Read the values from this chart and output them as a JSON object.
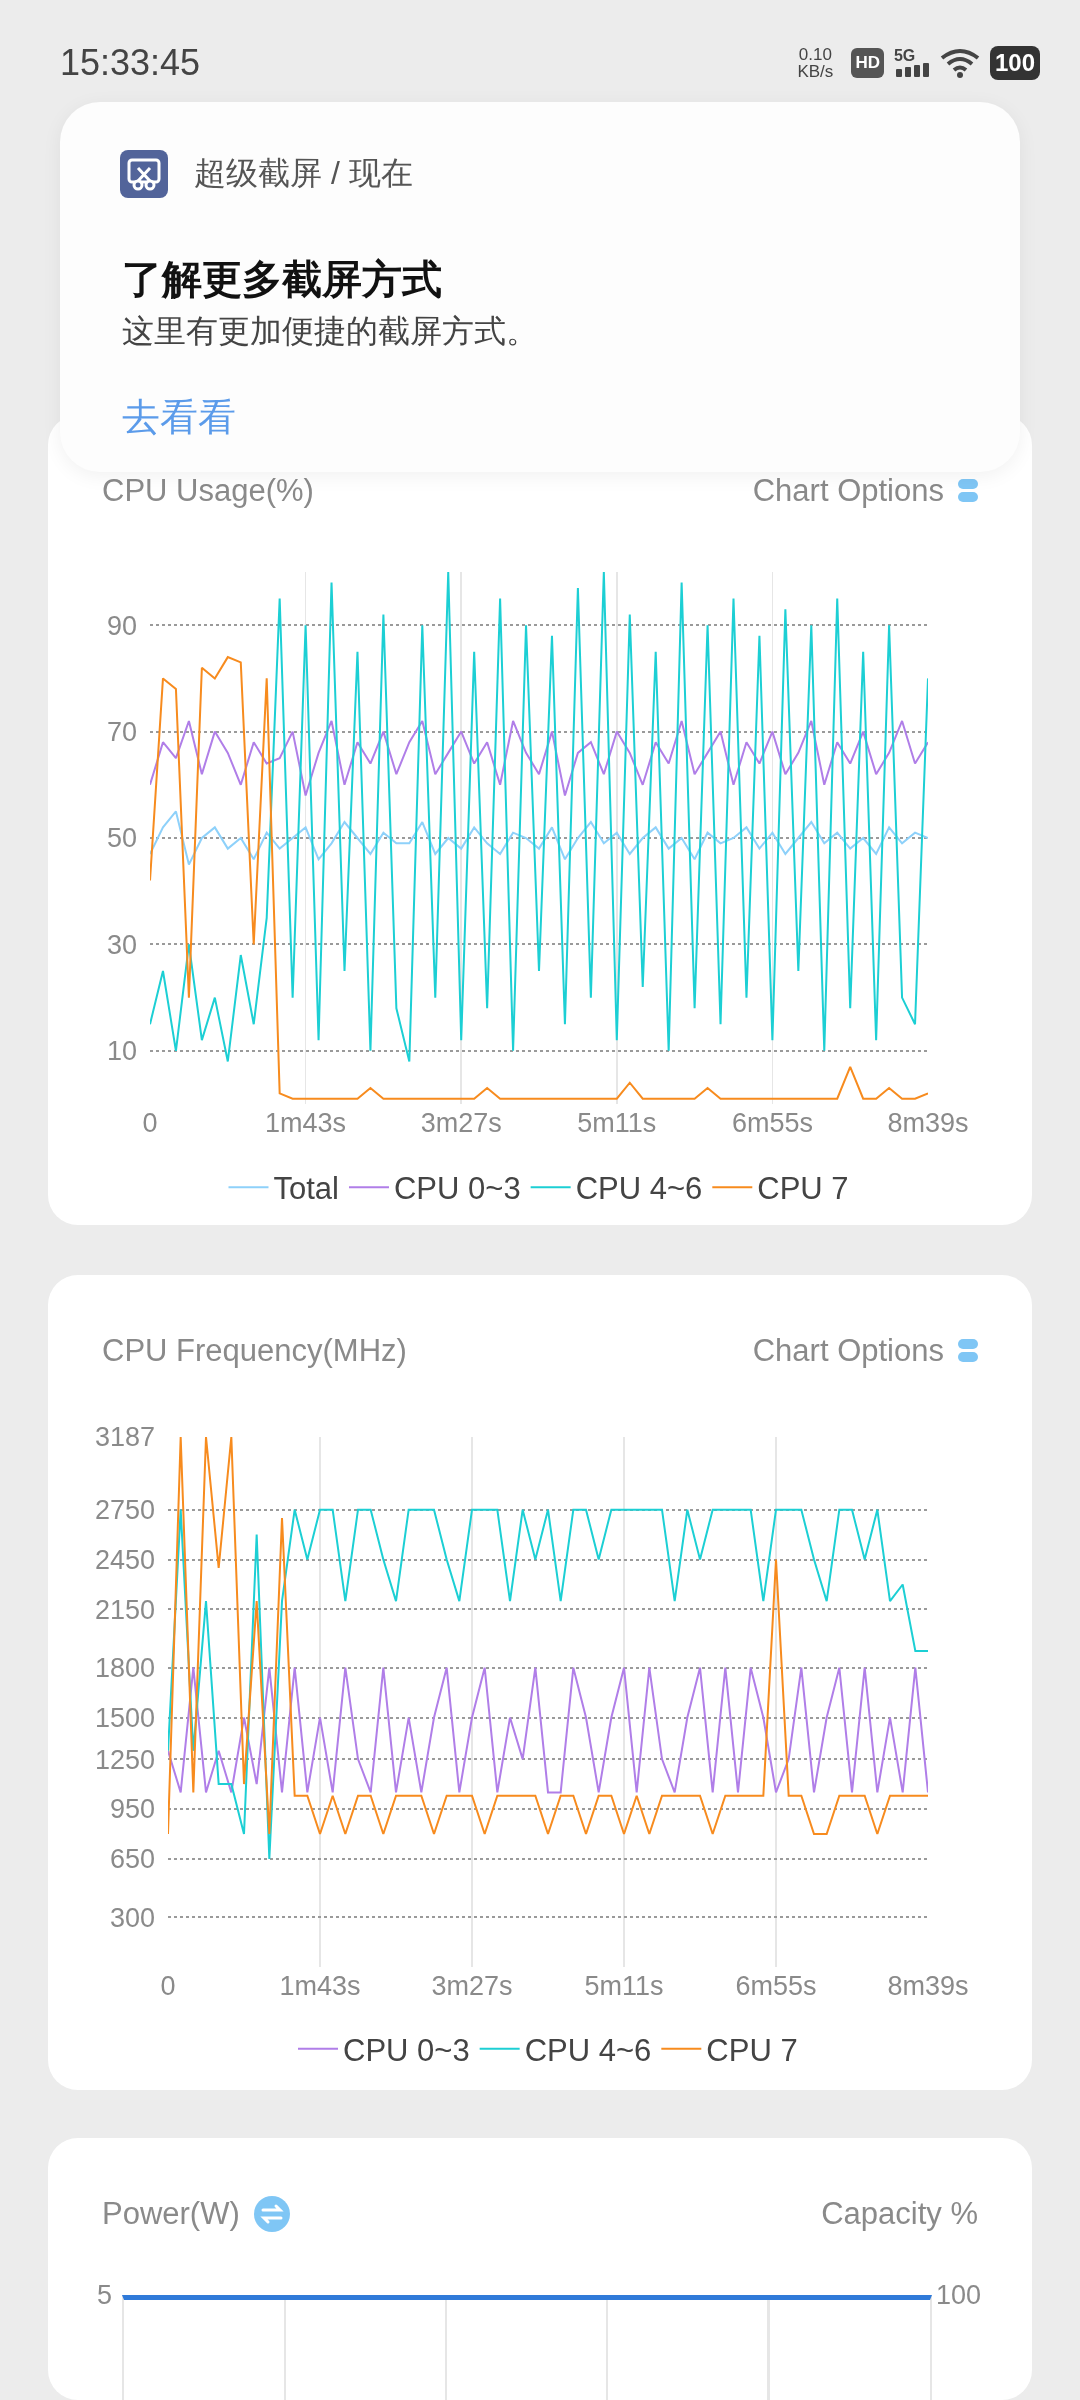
{
  "chart_data": [
    {
      "type": "other",
      "title": "了解更多截屏方式",
      "subtitle": "这里有更加便捷的截屏方式。",
      "annotations": [
        "15:33:45",
        "0.10 KB/s",
        "HD",
        "5G",
        "100",
        "超级截屏 / 现在",
        "去看看"
      ]
    },
    {
      "type": "line",
      "title": "CPU Usage(%)",
      "annotations": [
        "Chart Options"
      ],
      "legend": "bottom",
      "grid": true,
      "categories": [
        "0",
        null,
        null,
        null,
        null,
        null,
        null,
        null,
        null,
        null,
        null,
        null,
        "1m43s",
        null,
        null,
        null,
        null,
        null,
        null,
        null,
        null,
        null,
        null,
        null,
        "3m27s",
        null,
        null,
        null,
        null,
        null,
        null,
        null,
        null,
        null,
        null,
        null,
        "5m11s",
        null,
        null,
        null,
        null,
        null,
        null,
        null,
        null,
        null,
        null,
        null,
        "6m55s",
        null,
        null,
        null,
        null,
        null,
        null,
        null,
        null,
        null,
        null,
        null,
        "8m39s"
      ],
      "ylim": [
        0,
        100
      ],
      "yticks": [
        10,
        30,
        50,
        70,
        90
      ],
      "series": [
        {
          "name": "Total",
          "color": "#8ed1fa",
          "values": [
            47,
            52,
            55,
            45,
            50,
            52,
            48,
            50,
            46,
            51,
            48,
            50,
            52,
            46,
            49,
            53,
            50,
            47,
            51,
            49,
            49,
            53,
            47,
            50,
            48,
            52,
            49,
            47,
            51,
            50,
            48,
            52,
            46,
            50,
            53,
            49,
            51,
            47,
            50,
            52,
            48,
            50,
            46,
            51,
            49,
            50,
            52,
            48,
            51,
            47,
            50,
            53,
            49,
            51,
            48,
            50,
            47,
            52,
            49,
            51,
            50
          ]
        },
        {
          "name": "CPU 0~3",
          "color": "#b07ee8",
          "values": [
            60,
            68,
            65,
            72,
            62,
            70,
            66,
            60,
            68,
            64,
            65,
            70,
            58,
            66,
            72,
            60,
            68,
            64,
            70,
            62,
            68,
            72,
            62,
            66,
            70,
            64,
            68,
            60,
            72,
            66,
            62,
            70,
            58,
            66,
            68,
            62,
            70,
            66,
            60,
            68,
            64,
            72,
            62,
            66,
            70,
            60,
            68,
            64,
            70,
            62,
            66,
            72,
            60,
            68,
            64,
            70,
            62,
            66,
            72,
            64,
            68
          ]
        },
        {
          "name": "CPU 4~6",
          "color": "#1ccfd4",
          "values": [
            15,
            25,
            10,
            30,
            12,
            20,
            8,
            28,
            15,
            35,
            95,
            20,
            90,
            12,
            98,
            25,
            85,
            10,
            92,
            18,
            8,
            90,
            20,
            100,
            12,
            85,
            18,
            95,
            10,
            90,
            25,
            88,
            15,
            97,
            20,
            100,
            12,
            92,
            22,
            85,
            10,
            98,
            18,
            90,
            15,
            95,
            20,
            88,
            12,
            93,
            25,
            90,
            10,
            95,
            18,
            85,
            12,
            90,
            20,
            15,
            80
          ]
        },
        {
          "name": "CPU 7",
          "color": "#f78b1e",
          "values": [
            42,
            80,
            78,
            20,
            82,
            80,
            84,
            83,
            30,
            80,
            2,
            1,
            1,
            1,
            1,
            1,
            1,
            3,
            1,
            1,
            1,
            1,
            1,
            1,
            1,
            1,
            3,
            1,
            1,
            1,
            1,
            1,
            1,
            1,
            1,
            1,
            1,
            4,
            1,
            1,
            1,
            1,
            1,
            3,
            1,
            1,
            1,
            1,
            1,
            1,
            1,
            1,
            1,
            1,
            7,
            1,
            1,
            3,
            1,
            1,
            2
          ]
        }
      ]
    },
    {
      "type": "line",
      "title": "CPU Frequency(MHz)",
      "annotations": [
        "Chart Options"
      ],
      "legend": "bottom",
      "grid": true,
      "categories": [
        "0",
        null,
        null,
        null,
        null,
        null,
        null,
        null,
        null,
        null,
        null,
        null,
        "1m43s",
        null,
        null,
        null,
        null,
        null,
        null,
        null,
        null,
        null,
        null,
        null,
        "3m27s",
        null,
        null,
        null,
        null,
        null,
        null,
        null,
        null,
        null,
        null,
        null,
        "5m11s",
        null,
        null,
        null,
        null,
        null,
        null,
        null,
        null,
        null,
        null,
        null,
        "6m55s",
        null,
        null,
        null,
        null,
        null,
        null,
        null,
        null,
        null,
        null,
        null,
        "8m39s"
      ],
      "ylim": [
        0,
        3187
      ],
      "yticks": [
        300,
        650,
        950,
        1250,
        1500,
        1800,
        2150,
        2450,
        2750,
        3187
      ],
      "series": [
        {
          "name": "CPU 0~3",
          "color": "#b07ee8",
          "values": [
            1300,
            1050,
            1800,
            1050,
            1300,
            1050,
            1500,
            1100,
            1800,
            1050,
            1800,
            1050,
            1500,
            1050,
            1800,
            1250,
            1050,
            1800,
            1050,
            1500,
            1050,
            1500,
            1800,
            1050,
            1500,
            1800,
            1050,
            1500,
            1250,
            1800,
            1050,
            1050,
            1800,
            1500,
            1050,
            1500,
            1800,
            1050,
            1800,
            1250,
            1050,
            1500,
            1800,
            1050,
            1800,
            1050,
            1800,
            1500,
            1050,
            1250,
            1800,
            1050,
            1500,
            1800,
            1050,
            1800,
            1050,
            1500,
            1050,
            1800,
            1050
          ]
        },
        {
          "name": "CPU 4~6",
          "color": "#1ccfd4",
          "values": [
            1300,
            2750,
            1300,
            2200,
            1100,
            1100,
            800,
            2600,
            650,
            2200,
            2750,
            2450,
            2750,
            2750,
            2200,
            2750,
            2750,
            2450,
            2200,
            2750,
            2750,
            2750,
            2450,
            2200,
            2750,
            2750,
            2750,
            2200,
            2750,
            2450,
            2750,
            2200,
            2750,
            2750,
            2450,
            2750,
            2750,
            2750,
            2750,
            2750,
            2200,
            2750,
            2450,
            2750,
            2750,
            2750,
            2750,
            2200,
            2750,
            2750,
            2750,
            2450,
            2200,
            2750,
            2750,
            2450,
            2750,
            2200,
            2300,
            1900,
            1900
          ]
        },
        {
          "name": "CPU 7",
          "color": "#f78b1e",
          "values": [
            800,
            3187,
            1050,
            3187,
            2400,
            3187,
            1100,
            2200,
            800,
            2700,
            1030,
            1030,
            800,
            1030,
            800,
            1030,
            1030,
            800,
            1030,
            1030,
            1030,
            800,
            1030,
            1030,
            1030,
            800,
            1030,
            1030,
            1030,
            1030,
            800,
            1030,
            1030,
            800,
            1030,
            1030,
            800,
            1030,
            800,
            1030,
            1030,
            1030,
            1030,
            800,
            1030,
            1030,
            1030,
            1030,
            2450,
            1030,
            1030,
            800,
            800,
            1030,
            1030,
            1030,
            800,
            1030,
            1030,
            1030,
            1030
          ]
        }
      ]
    },
    {
      "type": "other",
      "title": "Power(W)",
      "annotations": [
        "Capacity %",
        "5",
        "100"
      ]
    }
  ]
}
